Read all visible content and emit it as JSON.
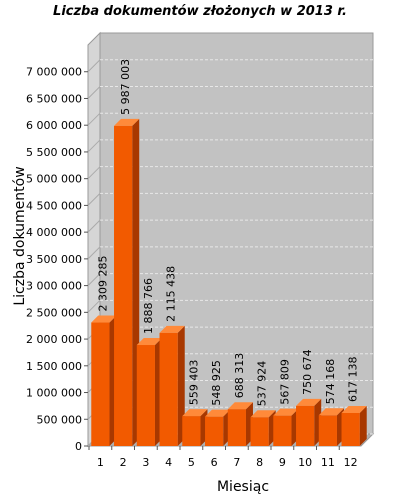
{
  "chart_data": {
    "type": "bar",
    "title": "Liczba dokumentów złożonych w 2013 r.",
    "xlabel": "Miesiąc",
    "ylabel": "Liczba dokumentów",
    "categories": [
      "1",
      "2",
      "3",
      "4",
      "5",
      "6",
      "7",
      "8",
      "9",
      "10",
      "11",
      "12"
    ],
    "values": [
      2309285,
      5987003,
      1888766,
      2115438,
      559403,
      548925,
      688313,
      537924,
      567809,
      750674,
      574168,
      617138
    ],
    "value_labels": [
      "2 309 285",
      "5 987 003",
      "1 888 766",
      "2 115 438",
      "559 403",
      "548 925",
      "688 313",
      "537 924",
      "567 809",
      "750 674",
      "574 168",
      "617 138"
    ],
    "ylim": [
      0,
      7500000
    ],
    "yticks": [
      0,
      500000,
      1000000,
      1500000,
      2000000,
      2500000,
      3000000,
      3500000,
      4000000,
      4500000,
      5000000,
      5500000,
      6000000,
      6500000,
      7000000
    ],
    "ytick_labels": [
      "0",
      "500 000",
      "1 000 000",
      "1 500 000",
      "2 000 000",
      "2 500 000",
      "3 000 000",
      "3 500 000",
      "4 000 000",
      "4 500 000",
      "5 000 000",
      "5 500 000",
      "6 000 000",
      "6 500 000",
      "7 000 000"
    ],
    "grid": true,
    "colors": {
      "bar_front": "#f25a00",
      "bar_top": "#ff8a3a",
      "bar_side": "#a83800",
      "plot_back": "#c2c2c2",
      "plot_side": "#d6d6d6",
      "plot_floor": "#b0b0b0",
      "grid": "#e8e8e8"
    }
  }
}
